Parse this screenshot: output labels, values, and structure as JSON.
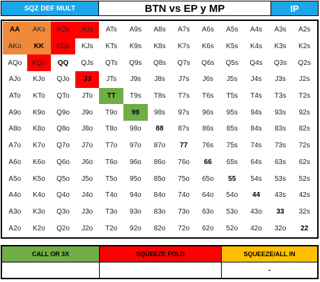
{
  "header": {
    "left": "SQZ DEF MULT",
    "title": "BTN vs EP y MP",
    "right": "IP"
  },
  "colors": {
    "orange": "#f0893c",
    "red": "#ff0000",
    "green": "#70ad47",
    "yellow": "#ffc000",
    "blue": "#1aa6e8"
  },
  "grid": [
    [
      "AA",
      "AKs",
      "AQs",
      "AJs",
      "ATs",
      "A9s",
      "A8s",
      "A7s",
      "A6s",
      "A5s",
      "A4s",
      "A3s",
      "A2s"
    ],
    [
      "AKo",
      "KK",
      "KQs",
      "KJs",
      "KTs",
      "K9s",
      "K8s",
      "K7s",
      "K6s",
      "K5s",
      "K4s",
      "K3s",
      "K2s"
    ],
    [
      "AQo",
      "KQo",
      "QQ",
      "QJs",
      "QTs",
      "Q9s",
      "Q8s",
      "Q7s",
      "Q6s",
      "Q5s",
      "Q4s",
      "Q3s",
      "Q2s"
    ],
    [
      "AJo",
      "KJo",
      "QJo",
      "JJ",
      "JTs",
      "J9s",
      "J8s",
      "J7s",
      "J6s",
      "J5s",
      "J4s",
      "J3s",
      "J2s"
    ],
    [
      "ATo",
      "KTo",
      "QTo",
      "JTo",
      "TT",
      "T9s",
      "T8s",
      "T7s",
      "T6s",
      "T5s",
      "T4s",
      "T3s",
      "T2s"
    ],
    [
      "A9o",
      "K9o",
      "Q9o",
      "J9o",
      "T9o",
      "99",
      "98s",
      "97s",
      "96s",
      "95s",
      "94s",
      "93s",
      "92s"
    ],
    [
      "A8o",
      "K8o",
      "Q8o",
      "J8o",
      "T8o",
      "98o",
      "88",
      "87s",
      "86s",
      "85s",
      "84s",
      "83s",
      "82s"
    ],
    [
      "A7o",
      "K7o",
      "Q7o",
      "J7o",
      "T7o",
      "97o",
      "87o",
      "77",
      "76s",
      "75s",
      "74s",
      "73s",
      "72s"
    ],
    [
      "A6o",
      "K6o",
      "Q6o",
      "J6o",
      "T6o",
      "96o",
      "86o",
      "76o",
      "66",
      "65s",
      "64s",
      "63s",
      "62s"
    ],
    [
      "A5o",
      "K5o",
      "Q5o",
      "J5o",
      "T5o",
      "95o",
      "85o",
      "75o",
      "65o",
      "55",
      "54s",
      "53s",
      "52s"
    ],
    [
      "A4o",
      "K4o",
      "Q4o",
      "J4o",
      "T4o",
      "94o",
      "84o",
      "74o",
      "64o",
      "54o",
      "44",
      "43s",
      "42s"
    ],
    [
      "A3o",
      "K3o",
      "Q3o",
      "J3o",
      "T3o",
      "93o",
      "83o",
      "73o",
      "63o",
      "53o",
      "43o",
      "33",
      "32s"
    ],
    [
      "A2o",
      "K2o",
      "Q2o",
      "J2o",
      "T2o",
      "92o",
      "82o",
      "72o",
      "62o",
      "52o",
      "42o",
      "32o",
      "22"
    ]
  ],
  "highlights": {
    "orange": [
      "AA",
      "AKs",
      "AKo",
      "KK"
    ],
    "red": [
      "AQs",
      "AJs",
      "KQs",
      "KQo",
      "JJ"
    ],
    "green": [
      "TT",
      "99"
    ],
    "bold": [
      "AA",
      "KK",
      "QQ",
      "JJ",
      "TT",
      "99",
      "88",
      "77",
      "66",
      "55",
      "44",
      "33",
      "22"
    ]
  },
  "legend": [
    {
      "label": "CALL OR 3X",
      "value": ""
    },
    {
      "label": "SQUEEZE FOLD",
      "value": ""
    },
    {
      "label": "SQUEEZE/ALL IN",
      "value": "-"
    }
  ]
}
